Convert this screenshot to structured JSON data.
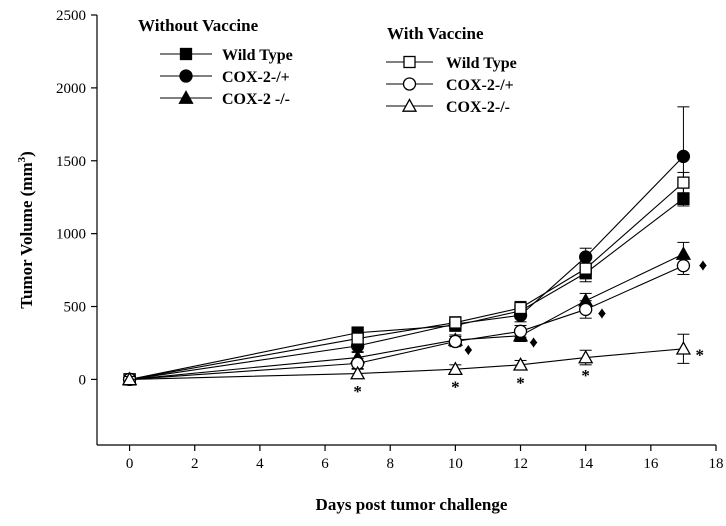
{
  "chart_data": {
    "type": "line",
    "xlabel": "Days post tumor challenge",
    "ylabel_main": "Tumor Volume (mm",
    "ylabel_sup": "3",
    "ylabel_close": ")",
    "xlim": [
      -1,
      18
    ],
    "ylim": [
      -450,
      2500
    ],
    "xticks": [
      0,
      2,
      4,
      6,
      8,
      10,
      12,
      14,
      16,
      18
    ],
    "yticks": [
      0,
      500,
      1000,
      1500,
      2000,
      2500
    ],
    "x": [
      0,
      7,
      10,
      12,
      14,
      17
    ],
    "legend": {
      "without_heading": "Without Vaccine",
      "with_heading": "With Vaccine"
    },
    "series": [
      {
        "name": "Wild Type",
        "group": "without",
        "marker": "square",
        "filled": true,
        "values": [
          0,
          320,
          370,
          470,
          730,
          1240
        ],
        "errors": [
          20,
          40,
          40,
          45,
          60,
          40
        ]
      },
      {
        "name": "COX-2-/+",
        "group": "without",
        "marker": "circle",
        "filled": true,
        "values": [
          0,
          230,
          380,
          440,
          840,
          1530
        ],
        "errors": [
          20,
          40,
          40,
          45,
          60,
          340
        ]
      },
      {
        "name": "COX-2 -/-",
        "group": "without",
        "marker": "triangle",
        "filled": true,
        "values": [
          0,
          150,
          270,
          300,
          540,
          860
        ],
        "errors": [
          20,
          35,
          35,
          40,
          50,
          80
        ]
      },
      {
        "name": "Wild Type",
        "group": "with",
        "marker": "square",
        "filled": false,
        "values": [
          0,
          280,
          390,
          490,
          760,
          1350
        ],
        "errors": [
          20,
          40,
          40,
          45,
          70,
          70
        ]
      },
      {
        "name": "COX-2-/+",
        "group": "with",
        "marker": "circle",
        "filled": false,
        "values": [
          0,
          110,
          260,
          330,
          480,
          780
        ],
        "errors": [
          20,
          35,
          35,
          40,
          60,
          60
        ]
      },
      {
        "name": "COX-2-/-",
        "group": "with",
        "marker": "triangle",
        "filled": false,
        "values": [
          0,
          40,
          70,
          100,
          150,
          210
        ],
        "errors": [
          20,
          30,
          30,
          30,
          50,
          100
        ]
      }
    ],
    "annotations": [
      {
        "text": "*",
        "x": 7,
        "y": -80
      },
      {
        "text": "*",
        "x": 10,
        "y": -50
      },
      {
        "text": "*",
        "x": 12,
        "y": -20
      },
      {
        "text": "*",
        "x": 14,
        "y": 30
      },
      {
        "text": "*",
        "x": 17.5,
        "y": 170
      },
      {
        "text": "♦",
        "x": 10.4,
        "y": 210
      },
      {
        "text": "♦",
        "x": 12.4,
        "y": 260
      },
      {
        "text": "♦",
        "x": 14.5,
        "y": 460
      },
      {
        "text": "♦",
        "x": 17.6,
        "y": 790
      }
    ]
  }
}
